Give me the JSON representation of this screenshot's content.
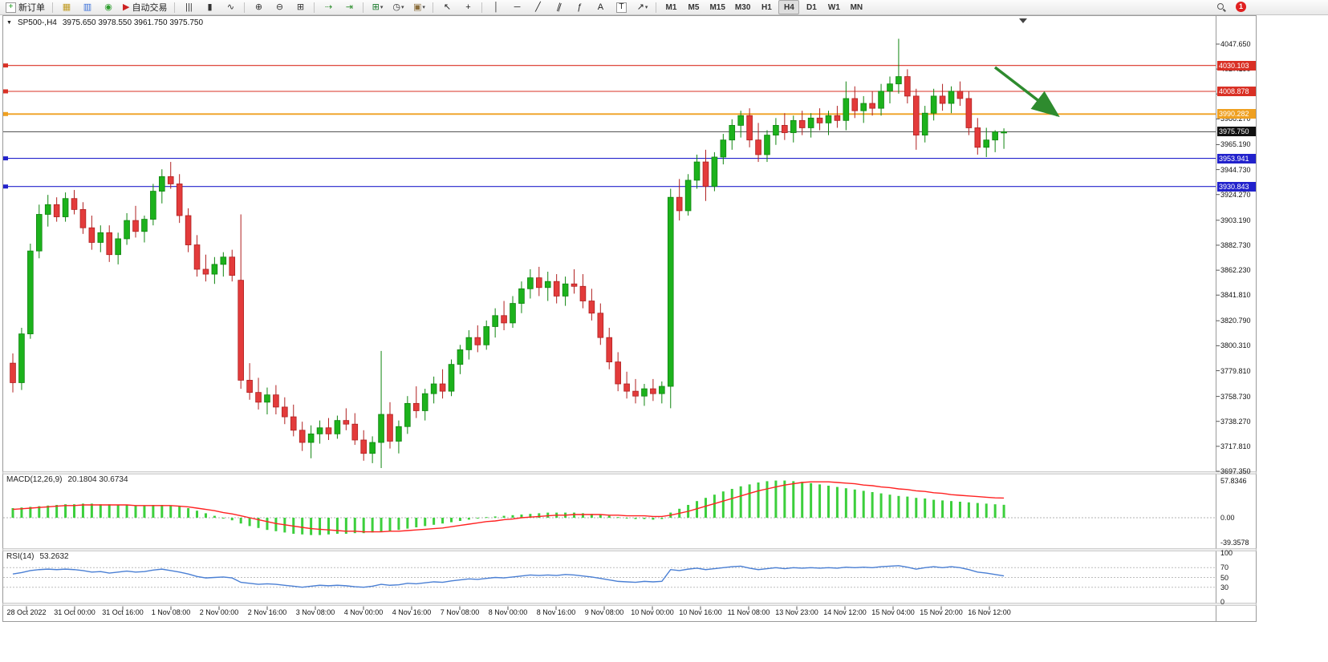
{
  "toolbar": {
    "notification_count": "1",
    "timeframes": [
      "M1",
      "M5",
      "M15",
      "M30",
      "H1",
      "H4",
      "D1",
      "W1",
      "MN"
    ],
    "active_timeframe": "H4",
    "groups": [
      [
        {
          "name": "new-order-button",
          "glyph": "+",
          "glyph_color": "#189a18",
          "label": "新订单",
          "boxed": true
        }
      ],
      [
        {
          "name": "market-watch-icon",
          "glyph": "▦",
          "glyph_color": "#c09a20"
        },
        {
          "name": "data-window-icon",
          "glyph": "▥",
          "glyph_color": "#3a6fd8"
        },
        {
          "name": "navigator-icon",
          "glyph": "◉",
          "glyph_color": "#2f9e2f"
        },
        {
          "name": "auto-trading-button",
          "glyph": "▶",
          "glyph_color": "#cc2222",
          "label": "自动交易"
        }
      ],
      [
        {
          "name": "bar-chart-type-icon",
          "glyph": "|||",
          "glyph_color": "#333333"
        },
        {
          "name": "candlestick-chart-type-icon",
          "glyph": "▮",
          "glyph_color": "#333333"
        },
        {
          "name": "line-chart-type-icon",
          "glyph": "∿",
          "glyph_color": "#333333"
        }
      ],
      [
        {
          "name": "zoom-in-icon",
          "glyph": "⊕",
          "glyph_color": "#333333"
        },
        {
          "name": "zoom-out-icon",
          "glyph": "⊖",
          "glyph_color": "#333333"
        },
        {
          "name": "tile-windows-icon",
          "glyph": "⊞",
          "glyph_color": "#333333"
        }
      ],
      [
        {
          "name": "auto-scroll-icon",
          "glyph": "⇢",
          "glyph_color": "#2f8f2f"
        },
        {
          "name": "chart-shift-icon",
          "glyph": "⇥",
          "glyph_color": "#2f8f2f"
        }
      ],
      [
        {
          "name": "new-chart-icon",
          "glyph": "⊞",
          "glyph_color": "#18792a",
          "caret": true
        },
        {
          "name": "period-clock-icon",
          "glyph": "◷",
          "glyph_color": "#333333",
          "caret": true
        },
        {
          "name": "template-icon",
          "glyph": "▣",
          "glyph_color": "#8a6d3b",
          "caret": true
        }
      ],
      [
        {
          "name": "cursor-icon",
          "glyph": "↖",
          "glyph_color": "#222222"
        },
        {
          "name": "crosshair-icon",
          "glyph": "+",
          "glyph_color": "#222222"
        }
      ],
      [
        {
          "name": "vertical-line-icon",
          "glyph": "│",
          "glyph_color": "#222222"
        },
        {
          "name": "horizontal-line-icon",
          "glyph": "─",
          "glyph_color": "#222222"
        },
        {
          "name": "trendline-icon",
          "glyph": "╱",
          "glyph_color": "#222222"
        },
        {
          "name": "channel-icon",
          "glyph": "∥",
          "glyph_color": "#222222",
          "rot": true
        },
        {
          "name": "fibonacci-icon",
          "glyph": "ƒ",
          "glyph_color": "#222222"
        },
        {
          "name": "text-icon",
          "glyph": "A",
          "glyph_color": "#222222"
        },
        {
          "name": "text-label-icon",
          "glyph": "T",
          "glyph_color": "#222222",
          "boxed": true
        },
        {
          "name": "objects-icon",
          "glyph": "↗",
          "glyph_color": "#222222",
          "caret": true
        }
      ]
    ]
  },
  "chart": {
    "collapse_glyph": "▼",
    "symbol": "SP500-,H4",
    "ohlc": "3975.650 3978.550 3961.750 3975.750",
    "price_axis_labels": [
      "4047.650",
      "4027.190",
      "4006.730",
      "3986.270",
      "3965.190",
      "3944.730",
      "3924.270",
      "3903.190",
      "3882.730",
      "3862.230",
      "3841.810",
      "3820.790",
      "3800.310",
      "3779.810",
      "3758.730",
      "3738.270",
      "3717.810",
      "3697.350"
    ],
    "levels": [
      {
        "label": "4030.103",
        "price": 4030.103,
        "color_key": "red"
      },
      {
        "label": "4008.878",
        "price": 4008.878,
        "color_key": "red"
      },
      {
        "label": "3990.282",
        "price": 3990.282,
        "color_key": "orange"
      },
      {
        "label": "3953.941",
        "price": 3953.941,
        "color_key": "blue"
      },
      {
        "label": "3930.843",
        "price": 3930.843,
        "color_key": "blue"
      }
    ],
    "current_price": {
      "label": "3975.750",
      "price": 3975.75
    },
    "date_axis_labels": [
      "28 Oct 2022",
      "31 Oct 00:00",
      "31 Oct 16:00",
      "1 Nov 08:00",
      "2 Nov 00:00",
      "2 Nov 16:00",
      "3 Nov 08:00",
      "4 Nov 00:00",
      "4 Nov 16:00",
      "7 Nov 08:00",
      "8 Nov 00:00",
      "8 Nov 16:00",
      "9 Nov 08:00",
      "10 Nov 00:00",
      "10 Nov 16:00",
      "11 Nov 08:00",
      "13 Nov 23:00",
      "14 Nov 12:00",
      "15 Nov 04:00",
      "15 Nov 20:00",
      "16 Nov 12:00"
    ],
    "candles": [
      [
        3786,
        3794,
        3762,
        3770
      ],
      [
        3770,
        3815,
        3764,
        3810
      ],
      [
        3810,
        3884,
        3806,
        3878
      ],
      [
        3878,
        3916,
        3872,
        3908
      ],
      [
        3908,
        3924,
        3898,
        3916
      ],
      [
        3916,
        3922,
        3902,
        3906
      ],
      [
        3906,
        3926,
        3902,
        3921
      ],
      [
        3921,
        3928,
        3908,
        3912
      ],
      [
        3912,
        3918,
        3892,
        3897
      ],
      [
        3897,
        3907,
        3879,
        3885
      ],
      [
        3885,
        3899,
        3877,
        3893
      ],
      [
        3893,
        3899,
        3869,
        3875
      ],
      [
        3875,
        3893,
        3867,
        3888
      ],
      [
        3888,
        3909,
        3883,
        3903
      ],
      [
        3903,
        3915,
        3889,
        3894
      ],
      [
        3894,
        3907,
        3885,
        3904
      ],
      [
        3904,
        3933,
        3899,
        3927
      ],
      [
        3927,
        3945,
        3917,
        3939
      ],
      [
        3939,
        3951,
        3929,
        3933
      ],
      [
        3933,
        3941,
        3901,
        3907
      ],
      [
        3907,
        3913,
        3877,
        3883
      ],
      [
        3883,
        3891,
        3857,
        3863
      ],
      [
        3863,
        3875,
        3853,
        3859
      ],
      [
        3859,
        3873,
        3851,
        3867
      ],
      [
        3867,
        3877,
        3857,
        3873
      ],
      [
        3873,
        3879,
        3853,
        3858
      ],
      [
        3854,
        3908,
        3765,
        3772
      ],
      [
        3772,
        3786,
        3756,
        3762
      ],
      [
        3762,
        3774,
        3748,
        3754
      ],
      [
        3754,
        3766,
        3744,
        3760
      ],
      [
        3760,
        3768,
        3744,
        3750
      ],
      [
        3750,
        3758,
        3736,
        3742
      ],
      [
        3742,
        3752,
        3726,
        3731
      ],
      [
        3731,
        3738,
        3714,
        3721
      ],
      [
        3721,
        3735,
        3708,
        3728
      ],
      [
        3728,
        3739,
        3720,
        3733
      ],
      [
        3733,
        3741,
        3723,
        3728
      ],
      [
        3728,
        3743,
        3724,
        3739
      ],
      [
        3739,
        3749,
        3731,
        3736
      ],
      [
        3736,
        3745,
        3719,
        3723
      ],
      [
        3723,
        3731,
        3706,
        3712
      ],
      [
        3712,
        3726,
        3704,
        3721
      ],
      [
        3721,
        3796,
        3700,
        3744
      ],
      [
        3744,
        3754,
        3716,
        3722
      ],
      [
        3722,
        3739,
        3712,
        3734
      ],
      [
        3734,
        3759,
        3728,
        3753
      ],
      [
        3753,
        3767,
        3741,
        3747
      ],
      [
        3747,
        3765,
        3739,
        3761
      ],
      [
        3761,
        3775,
        3753,
        3769
      ],
      [
        3769,
        3781,
        3757,
        3763
      ],
      [
        3763,
        3789,
        3759,
        3785
      ],
      [
        3785,
        3801,
        3777,
        3797
      ],
      [
        3797,
        3813,
        3789,
        3807
      ],
      [
        3807,
        3817,
        3795,
        3801
      ],
      [
        3801,
        3821,
        3797,
        3816
      ],
      [
        3816,
        3831,
        3807,
        3825
      ],
      [
        3825,
        3837,
        3813,
        3819
      ],
      [
        3819,
        3841,
        3815,
        3835
      ],
      [
        3835,
        3853,
        3827,
        3847
      ],
      [
        3847,
        3863,
        3839,
        3856
      ],
      [
        3856,
        3865,
        3841,
        3848
      ],
      [
        3848,
        3861,
        3837,
        3853
      ],
      [
        3853,
        3859,
        3835,
        3841
      ],
      [
        3841,
        3857,
        3833,
        3851
      ],
      [
        3851,
        3863,
        3843,
        3849
      ],
      [
        3849,
        3859,
        3831,
        3837
      ],
      [
        3837,
        3847,
        3821,
        3827
      ],
      [
        3827,
        3835,
        3801,
        3807
      ],
      [
        3807,
        3815,
        3781,
        3787
      ],
      [
        3787,
        3795,
        3763,
        3769
      ],
      [
        3769,
        3779,
        3757,
        3763
      ],
      [
        3763,
        3773,
        3753,
        3759
      ],
      [
        3759,
        3769,
        3751,
        3765
      ],
      [
        3765,
        3773,
        3755,
        3761
      ],
      [
        3761,
        3771,
        3753,
        3767
      ],
      [
        3767,
        3929,
        3749,
        3922
      ],
      [
        3922,
        3937,
        3903,
        3911
      ],
      [
        3911,
        3941,
        3907,
        3936
      ],
      [
        3936,
        3957,
        3929,
        3951
      ],
      [
        3951,
        3961,
        3919,
        3931
      ],
      [
        3931,
        3959,
        3927,
        3955
      ],
      [
        3955,
        3974,
        3949,
        3969
      ],
      [
        3969,
        3986,
        3961,
        3981
      ],
      [
        3981,
        3993,
        3971,
        3989
      ],
      [
        3989,
        3995,
        3963,
        3969
      ],
      [
        3969,
        3983,
        3951,
        3957
      ],
      [
        3957,
        3977,
        3951,
        3973
      ],
      [
        3973,
        3987,
        3965,
        3981
      ],
      [
        3981,
        3991,
        3969,
        3975
      ],
      [
        3975,
        3989,
        3967,
        3985
      ],
      [
        3985,
        3993,
        3973,
        3979
      ],
      [
        3979,
        3991,
        3971,
        3987
      ],
      [
        3987,
        3995,
        3977,
        3983
      ],
      [
        3983,
        3993,
        3973,
        3989
      ],
      [
        3989,
        3997,
        3979,
        3985
      ],
      [
        3985,
        4017,
        3977,
        4003
      ],
      [
        4003,
        4013,
        3987,
        3993
      ],
      [
        3993,
        4005,
        3983,
        3999
      ],
      [
        3999,
        4009,
        3989,
        3995
      ],
      [
        3995,
        4015,
        3989,
        4009
      ],
      [
        4009,
        4021,
        3999,
        4015
      ],
      [
        4015,
        4052,
        4007,
        4021
      ],
      [
        4021,
        4027,
        3999,
        4005
      ],
      [
        4005,
        4011,
        3961,
        3973
      ],
      [
        3973,
        3997,
        3967,
        3991
      ],
      [
        3991,
        4011,
        3985,
        4005
      ],
      [
        4005,
        4015,
        3993,
        3999
      ],
      [
        3999,
        4013,
        3991,
        4009
      ],
      [
        4009,
        4017,
        3997,
        4003
      ],
      [
        4003,
        4009,
        3973,
        3979
      ],
      [
        3979,
        3987,
        3957,
        3963
      ],
      [
        3963,
        3979,
        3955,
        3969
      ],
      [
        3969,
        3977,
        3959,
        3975.65
      ],
      [
        3975.65,
        3978.55,
        3961.75,
        3975.75
      ]
    ]
  },
  "macd": {
    "title": "MACD(12,26,9)",
    "values": "20.1804 30.6734",
    "axis": [
      {
        "label": "57.8346",
        "value": 57.8346
      },
      {
        "label": "0.00",
        "value": 0
      },
      {
        "label": "-39.3578",
        "value": -39.3578
      }
    ],
    "histogram": [
      15,
      16,
      17,
      18,
      19,
      20,
      21,
      21,
      22,
      22,
      21,
      21,
      20,
      20,
      19,
      19,
      20,
      20,
      19,
      18,
      15,
      11,
      7,
      3,
      -1,
      -4,
      -9,
      -13,
      -16,
      -19,
      -21,
      -23,
      -25,
      -26,
      -27,
      -27,
      -26,
      -25,
      -25,
      -24,
      -24,
      -23,
      -22,
      -21,
      -19,
      -17,
      -15,
      -13,
      -11,
      -9,
      -7,
      -5,
      -3,
      -1,
      1,
      2,
      3,
      4,
      5,
      6,
      7,
      8,
      8,
      8,
      8,
      7,
      6,
      5,
      3,
      1,
      -1,
      -2,
      -2,
      -3,
      -2,
      8,
      14,
      20,
      26,
      31,
      36,
      41,
      45,
      49,
      52,
      55,
      57,
      58,
      58,
      57,
      56,
      54,
      52,
      50,
      48,
      46,
      44,
      42,
      40,
      38,
      36,
      34,
      33,
      31,
      30,
      28,
      27,
      26,
      25,
      24,
      23,
      22,
      21,
      20.18
    ],
    "signal": [
      13,
      14,
      15,
      16,
      17,
      18,
      19,
      19,
      20,
      20,
      20,
      20,
      20,
      20,
      19,
      19,
      19,
      19,
      19,
      18,
      17,
      15,
      13,
      11,
      8,
      6,
      3,
      0,
      -3,
      -6,
      -9,
      -11,
      -13,
      -15,
      -17,
      -18,
      -19,
      -20,
      -21,
      -21,
      -22,
      -22,
      -22,
      -21,
      -21,
      -20,
      -19,
      -18,
      -17,
      -16,
      -14,
      -12,
      -10,
      -8,
      -6,
      -5,
      -3,
      -2,
      0,
      1,
      2,
      3,
      4,
      4,
      5,
      5,
      5,
      5,
      4,
      4,
      3,
      3,
      3,
      2,
      2,
      4,
      7,
      10,
      14,
      18,
      22,
      26,
      30,
      34,
      38,
      42,
      45,
      48,
      51,
      53,
      55,
      56,
      56,
      56,
      55,
      54,
      53,
      51,
      50,
      48,
      47,
      45,
      44,
      42,
      41,
      39,
      38,
      36,
      35,
      34,
      33,
      32,
      31,
      30.67
    ]
  },
  "rsi": {
    "title": "RSI(14)",
    "value": "53.2632",
    "axis": [
      {
        "label": "100",
        "value": 100
      },
      {
        "label": "70",
        "value": 70
      },
      {
        "label": "50",
        "value": 50
      },
      {
        "label": "30",
        "value": 30
      },
      {
        "label": "0",
        "value": 0
      }
    ],
    "levels": [
      70,
      50,
      30
    ],
    "line": [
      57,
      60,
      64,
      66,
      67,
      66,
      67,
      66,
      64,
      61,
      62,
      59,
      61,
      63,
      61,
      62,
      65,
      67,
      64,
      61,
      57,
      52,
      49,
      50,
      51,
      49,
      40,
      38,
      36,
      37,
      36,
      34,
      32,
      30,
      32,
      34,
      33,
      34,
      33,
      31,
      30,
      32,
      36,
      34,
      35,
      38,
      37,
      39,
      41,
      40,
      43,
      45,
      47,
      46,
      48,
      50,
      49,
      51,
      53,
      55,
      54,
      55,
      54,
      56,
      55,
      53,
      51,
      48,
      45,
      42,
      41,
      40,
      42,
      41,
      42,
      66,
      64,
      67,
      69,
      66,
      68,
      70,
      72,
      73,
      69,
      66,
      68,
      70,
      68,
      70,
      69,
      70,
      69,
      70,
      69,
      71,
      70,
      71,
      70,
      72,
      73,
      74,
      71,
      67,
      70,
      72,
      70,
      72,
      70,
      66,
      61,
      59,
      56,
      53.26
    ]
  },
  "colors": {
    "up": "#1cb21c",
    "up_dark": "#108510",
    "down": "#e33b3b",
    "down_dark": "#b02020",
    "macd_hist": "#3ccf3c",
    "macd_signal": "#ff2222",
    "rsi_line": "#4a7fd4",
    "level_red": "#d93025",
    "level_orange": "#efa021",
    "level_blue": "#2222cc",
    "current_price_bg": "#111111",
    "arrow_green": "#2e8b2e"
  }
}
